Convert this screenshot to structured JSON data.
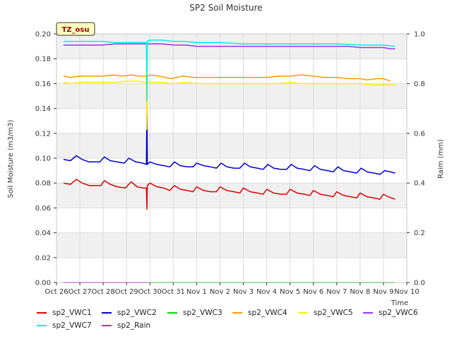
{
  "chart_data": {
    "type": "line",
    "title": "SP2 Soil Moisture",
    "xlabel": "Time",
    "ylabel": "Soil Moisture (m3/m3)",
    "y2label": "Raim (mm)",
    "annotation": "TZ_osu",
    "x_range": [
      0,
      15
    ],
    "x_ticks": [
      0,
      1,
      2,
      3,
      4,
      5,
      6,
      7,
      8,
      9,
      10,
      11,
      12,
      13,
      14,
      15
    ],
    "x_tick_labels": [
      "Oct 26",
      "Oct 27",
      "Oct 28",
      "Oct 29",
      "Oct 30",
      "Oct 31",
      "Nov 1",
      "Nov 2",
      "Nov 3",
      "Nov 4",
      "Nov 5",
      "Nov 6",
      "Nov 7",
      "Nov 8",
      "Nov 9",
      "Nov 10"
    ],
    "ylim": [
      0,
      0.2
    ],
    "y_ticks": [
      0,
      0.02,
      0.04,
      0.06,
      0.08,
      0.1,
      0.12,
      0.14,
      0.16,
      0.18,
      0.2
    ],
    "y_tick_labels": [
      "0.00",
      "0.02",
      "0.04",
      "0.06",
      "0.08",
      "0.10",
      "0.12",
      "0.14",
      "0.16",
      "0.18",
      "0.20"
    ],
    "y2lim": [
      0,
      1.0
    ],
    "y2_ticks": [
      0,
      0.2,
      0.4,
      0.6,
      0.8,
      1.0
    ],
    "y2_tick_labels": [
      "0.0",
      "0.2",
      "0.4",
      "0.6",
      "0.8",
      "1.0"
    ],
    "grid": true,
    "legend_position": "bottom",
    "series": [
      {
        "name": "sp2_VWC1",
        "color": "#dd0000",
        "axis": "left",
        "points": [
          [
            0.3,
            0.08
          ],
          [
            0.6,
            0.079
          ],
          [
            0.85,
            0.083
          ],
          [
            1.1,
            0.08
          ],
          [
            1.4,
            0.078
          ],
          [
            1.9,
            0.078
          ],
          [
            2.05,
            0.082
          ],
          [
            2.3,
            0.079
          ],
          [
            2.6,
            0.077
          ],
          [
            2.95,
            0.076
          ],
          [
            3.2,
            0.081
          ],
          [
            3.45,
            0.077
          ],
          [
            3.7,
            0.076
          ],
          [
            3.85,
            0.076
          ],
          [
            3.87,
            0.059
          ],
          [
            3.89,
            0.078
          ],
          [
            4.0,
            0.08
          ],
          [
            4.3,
            0.077
          ],
          [
            4.6,
            0.076
          ],
          [
            4.85,
            0.074
          ],
          [
            5.05,
            0.078
          ],
          [
            5.3,
            0.075
          ],
          [
            5.6,
            0.074
          ],
          [
            5.85,
            0.073
          ],
          [
            6.0,
            0.077
          ],
          [
            6.3,
            0.074
          ],
          [
            6.6,
            0.073
          ],
          [
            6.85,
            0.073
          ],
          [
            7.0,
            0.077
          ],
          [
            7.3,
            0.074
          ],
          [
            7.6,
            0.073
          ],
          [
            7.85,
            0.072
          ],
          [
            8.0,
            0.076
          ],
          [
            8.3,
            0.073
          ],
          [
            8.6,
            0.072
          ],
          [
            8.85,
            0.071
          ],
          [
            9.0,
            0.075
          ],
          [
            9.3,
            0.072
          ],
          [
            9.6,
            0.071
          ],
          [
            9.85,
            0.071
          ],
          [
            10.0,
            0.075
          ],
          [
            10.3,
            0.072
          ],
          [
            10.6,
            0.071
          ],
          [
            10.85,
            0.07
          ],
          [
            11.0,
            0.074
          ],
          [
            11.3,
            0.071
          ],
          [
            11.6,
            0.07
          ],
          [
            11.85,
            0.069
          ],
          [
            12.0,
            0.073
          ],
          [
            12.3,
            0.07
          ],
          [
            12.6,
            0.069
          ],
          [
            12.85,
            0.068
          ],
          [
            13.0,
            0.072
          ],
          [
            13.3,
            0.069
          ],
          [
            13.6,
            0.068
          ],
          [
            13.85,
            0.067
          ],
          [
            14.0,
            0.071
          ],
          [
            14.2,
            0.069
          ],
          [
            14.5,
            0.067
          ]
        ]
      },
      {
        "name": "sp2_VWC2",
        "color": "#0000cc",
        "axis": "left",
        "points": [
          [
            0.3,
            0.099
          ],
          [
            0.6,
            0.098
          ],
          [
            0.85,
            0.102
          ],
          [
            1.1,
            0.099
          ],
          [
            1.4,
            0.097
          ],
          [
            1.85,
            0.097
          ],
          [
            2.05,
            0.101
          ],
          [
            2.3,
            0.098
          ],
          [
            2.6,
            0.097
          ],
          [
            2.9,
            0.096
          ],
          [
            3.1,
            0.1
          ],
          [
            3.4,
            0.097
          ],
          [
            3.7,
            0.096
          ],
          [
            3.85,
            0.095
          ],
          [
            3.87,
            0.147
          ],
          [
            3.89,
            0.095
          ],
          [
            4.0,
            0.097
          ],
          [
            4.3,
            0.095
          ],
          [
            4.6,
            0.094
          ],
          [
            4.85,
            0.093
          ],
          [
            5.05,
            0.097
          ],
          [
            5.3,
            0.094
          ],
          [
            5.6,
            0.093
          ],
          [
            5.85,
            0.093
          ],
          [
            6.0,
            0.096
          ],
          [
            6.3,
            0.094
          ],
          [
            6.6,
            0.093
          ],
          [
            6.85,
            0.092
          ],
          [
            7.05,
            0.096
          ],
          [
            7.3,
            0.093
          ],
          [
            7.6,
            0.092
          ],
          [
            7.85,
            0.092
          ],
          [
            8.05,
            0.096
          ],
          [
            8.3,
            0.093
          ],
          [
            8.6,
            0.092
          ],
          [
            8.85,
            0.091
          ],
          [
            9.05,
            0.095
          ],
          [
            9.3,
            0.092
          ],
          [
            9.6,
            0.091
          ],
          [
            9.85,
            0.091
          ],
          [
            10.05,
            0.095
          ],
          [
            10.3,
            0.092
          ],
          [
            10.6,
            0.091
          ],
          [
            10.85,
            0.09
          ],
          [
            11.05,
            0.094
          ],
          [
            11.3,
            0.091
          ],
          [
            11.6,
            0.09
          ],
          [
            11.85,
            0.089
          ],
          [
            12.05,
            0.093
          ],
          [
            12.3,
            0.09
          ],
          [
            12.6,
            0.089
          ],
          [
            12.85,
            0.088
          ],
          [
            13.05,
            0.092
          ],
          [
            13.3,
            0.089
          ],
          [
            13.6,
            0.088
          ],
          [
            13.85,
            0.087
          ],
          [
            14.05,
            0.09
          ],
          [
            14.3,
            0.089
          ],
          [
            14.5,
            0.088
          ]
        ]
      },
      {
        "name": "sp2_VWC3",
        "color": "#00dd00",
        "axis": "left",
        "points": [
          [
            3.88,
            0.0
          ],
          [
            14.5,
            0.0
          ]
        ]
      },
      {
        "name": "sp2_VWC4",
        "color": "#ff9900",
        "axis": "left",
        "points": [
          [
            0.3,
            0.166
          ],
          [
            0.6,
            0.165
          ],
          [
            1.0,
            0.166
          ],
          [
            1.5,
            0.166
          ],
          [
            2.0,
            0.166
          ],
          [
            2.4,
            0.167
          ],
          [
            2.8,
            0.166
          ],
          [
            3.2,
            0.167
          ],
          [
            3.5,
            0.166
          ],
          [
            3.85,
            0.166
          ],
          [
            3.87,
            0.15
          ],
          [
            3.89,
            0.166
          ],
          [
            4.0,
            0.167
          ],
          [
            4.4,
            0.166
          ],
          [
            4.9,
            0.164
          ],
          [
            5.4,
            0.166
          ],
          [
            5.9,
            0.165
          ],
          [
            6.5,
            0.165
          ],
          [
            7.0,
            0.165
          ],
          [
            7.5,
            0.165
          ],
          [
            8.0,
            0.165
          ],
          [
            8.5,
            0.165
          ],
          [
            9.0,
            0.165
          ],
          [
            9.5,
            0.166
          ],
          [
            10.0,
            0.166
          ],
          [
            10.5,
            0.167
          ],
          [
            11.0,
            0.166
          ],
          [
            11.5,
            0.165
          ],
          [
            12.0,
            0.165
          ],
          [
            12.5,
            0.164
          ],
          [
            13.0,
            0.164
          ],
          [
            13.3,
            0.163
          ],
          [
            13.7,
            0.164
          ],
          [
            14.0,
            0.164
          ],
          [
            14.3,
            0.162
          ]
        ]
      },
      {
        "name": "sp2_VWC5",
        "color": "#ffee00",
        "axis": "left",
        "points": [
          [
            0.3,
            0.161
          ],
          [
            0.6,
            0.16
          ],
          [
            1.0,
            0.161
          ],
          [
            1.5,
            0.161
          ],
          [
            2.0,
            0.161
          ],
          [
            2.5,
            0.161
          ],
          [
            3.0,
            0.162
          ],
          [
            3.5,
            0.162
          ],
          [
            3.85,
            0.161
          ],
          [
            3.86,
            0.123
          ],
          [
            3.87,
            0.135
          ],
          [
            3.89,
            0.162
          ],
          [
            4.0,
            0.161
          ],
          [
            4.5,
            0.161
          ],
          [
            5.0,
            0.16
          ],
          [
            5.5,
            0.161
          ],
          [
            6.0,
            0.16
          ],
          [
            6.5,
            0.16
          ],
          [
            7.0,
            0.16
          ],
          [
            7.5,
            0.16
          ],
          [
            8.0,
            0.16
          ],
          [
            8.5,
            0.16
          ],
          [
            9.0,
            0.16
          ],
          [
            9.5,
            0.16
          ],
          [
            10.0,
            0.161
          ],
          [
            10.5,
            0.16
          ],
          [
            11.0,
            0.16
          ],
          [
            11.5,
            0.16
          ],
          [
            12.0,
            0.16
          ],
          [
            12.5,
            0.16
          ],
          [
            13.0,
            0.16
          ],
          [
            13.5,
            0.159
          ],
          [
            14.0,
            0.159
          ],
          [
            14.5,
            0.159
          ]
        ]
      },
      {
        "name": "sp2_VWC6",
        "color": "#9933ee",
        "axis": "left",
        "points": [
          [
            0.3,
            0.191
          ],
          [
            1.0,
            0.191
          ],
          [
            2.0,
            0.191
          ],
          [
            2.5,
            0.192
          ],
          [
            3.0,
            0.192
          ],
          [
            3.5,
            0.192
          ],
          [
            3.85,
            0.192
          ],
          [
            3.89,
            0.192
          ],
          [
            4.0,
            0.192
          ],
          [
            4.5,
            0.192
          ],
          [
            5.0,
            0.191
          ],
          [
            5.5,
            0.191
          ],
          [
            6.0,
            0.19
          ],
          [
            7.0,
            0.19
          ],
          [
            8.0,
            0.19
          ],
          [
            9.0,
            0.19
          ],
          [
            10.0,
            0.19
          ],
          [
            11.0,
            0.19
          ],
          [
            12.0,
            0.19
          ],
          [
            12.5,
            0.19
          ],
          [
            13.0,
            0.189
          ],
          [
            13.5,
            0.189
          ],
          [
            14.0,
            0.189
          ],
          [
            14.3,
            0.188
          ],
          [
            14.5,
            0.188
          ]
        ]
      },
      {
        "name": "sp2_VWC7",
        "color": "#00eeee",
        "axis": "left",
        "points": [
          [
            0.3,
            0.194
          ],
          [
            1.0,
            0.194
          ],
          [
            1.5,
            0.194
          ],
          [
            2.0,
            0.194
          ],
          [
            2.5,
            0.193
          ],
          [
            3.0,
            0.193
          ],
          [
            3.5,
            0.193
          ],
          [
            3.85,
            0.193
          ],
          [
            3.87,
            0.146
          ],
          [
            3.89,
            0.194
          ],
          [
            4.0,
            0.195
          ],
          [
            4.5,
            0.195
          ],
          [
            5.0,
            0.194
          ],
          [
            5.5,
            0.194
          ],
          [
            6.0,
            0.193
          ],
          [
            7.0,
            0.193
          ],
          [
            8.0,
            0.192
          ],
          [
            9.0,
            0.192
          ],
          [
            10.0,
            0.192
          ],
          [
            11.0,
            0.192
          ],
          [
            12.0,
            0.192
          ],
          [
            13.0,
            0.191
          ],
          [
            14.0,
            0.191
          ],
          [
            14.5,
            0.19
          ]
        ]
      },
      {
        "name": "sp2_Rain",
        "color": "#dd00dd",
        "axis": "right",
        "points": [
          [
            0.3,
            0.0
          ],
          [
            3.88,
            0.0
          ]
        ]
      }
    ]
  }
}
